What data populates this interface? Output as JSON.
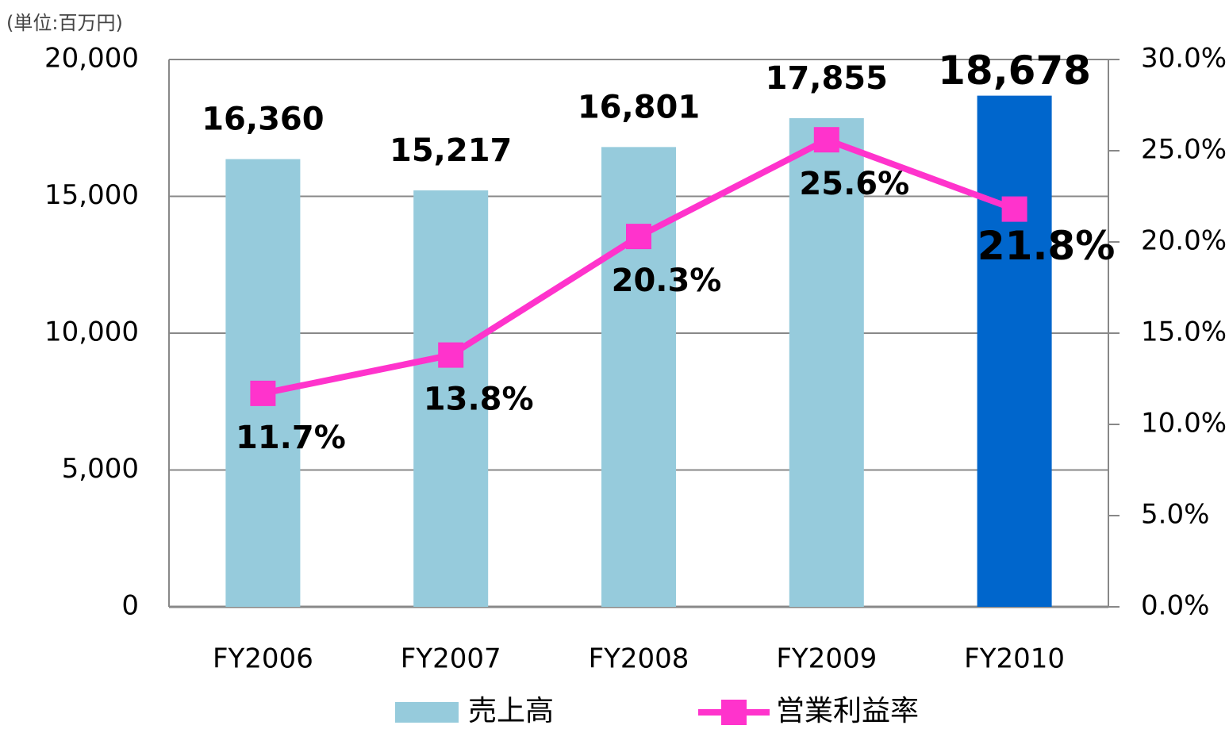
{
  "chart_data": {
    "type": "bar",
    "unit_label": "(単位:百万円)",
    "categories": [
      "FY2006",
      "FY2007",
      "FY2008",
      "FY2009",
      "FY2010"
    ],
    "series": [
      {
        "name": "売上高",
        "type": "bar",
        "color": "#96cbdc",
        "colors": [
          "#96cbdc",
          "#96cbdc",
          "#96cbdc",
          "#96cbdc",
          "#0066cc"
        ],
        "values": [
          16360,
          15217,
          16801,
          17855,
          18678
        ],
        "value_labels": [
          "16,360",
          "15,217",
          "16,801",
          "17,855",
          "18,678"
        ]
      },
      {
        "name": "営業利益率",
        "type": "line",
        "axis": "y2",
        "color": "#ff33cc",
        "values": [
          11.7,
          13.8,
          20.3,
          25.6,
          21.8
        ],
        "value_labels": [
          "11.7%",
          "13.8%",
          "20.3%",
          "25.6%",
          "21.8%"
        ]
      }
    ],
    "ylim": [
      0,
      20000
    ],
    "yticks": [
      0,
      {
        "value": 5000,
        "label": "5,000"
      },
      {
        "value": 10000,
        "label": "10,000"
      },
      {
        "value": 15000,
        "label": "15,000"
      },
      {
        "value": 20000,
        "label": "20,000"
      }
    ],
    "y2lim": [
      0,
      30
    ],
    "y2ticks": [
      {
        "value": 0,
        "label": "0.0%"
      },
      {
        "value": 5,
        "label": "5.0%"
      },
      {
        "value": 10,
        "label": "10.0%"
      },
      {
        "value": 15,
        "label": "15.0%"
      },
      {
        "value": 20,
        "label": "20.0%"
      },
      {
        "value": 25,
        "label": "25.0%"
      },
      {
        "value": 30,
        "label": "30.0%"
      }
    ],
    "grid": true,
    "legend": "bottom"
  }
}
